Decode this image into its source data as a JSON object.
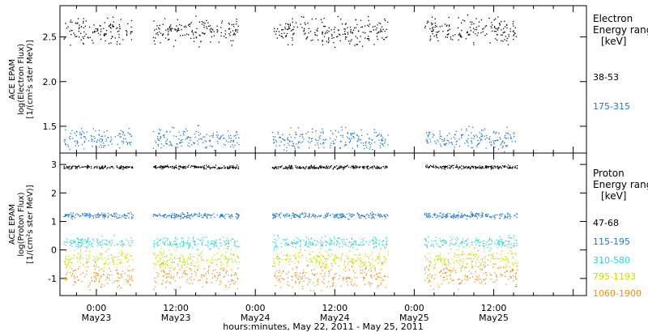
{
  "chart_data": {
    "type": "scatter",
    "xlabel": "hours:minutes, May 22, 2011 - May 25, 2011",
    "x_ticks": [
      {
        "time": "0:00",
        "day": "May23"
      },
      {
        "time": "12:00",
        "day": "May23"
      },
      {
        "time": "0:00",
        "day": "May24"
      },
      {
        "time": "12:00",
        "day": "May24"
      },
      {
        "time": "0:00",
        "day": "May25"
      },
      {
        "time": "12:00",
        "day": "May25"
      }
    ],
    "x_tick_hours": [
      0,
      12,
      24,
      36,
      48,
      60
    ],
    "xlim_hours": [
      -5.5,
      74
    ],
    "data_segments_hours": [
      [
        -5.0,
        5.5
      ],
      [
        8.5,
        21.5
      ],
      [
        26.5,
        44.0
      ],
      [
        49.5,
        63.5
      ]
    ],
    "panels": [
      {
        "id": "electron",
        "ylabel": [
          "ACE EPAM",
          "log(Electron Flux)",
          "[1/(cm²s ster MeV)]"
        ],
        "ylim": [
          1.2,
          2.85
        ],
        "y_ticks": [
          "1.5",
          "2.0",
          "2.5"
        ],
        "y_tick_values": [
          1.5,
          2.0,
          2.5
        ],
        "legend_title": [
          "Electron",
          "Energy range",
          "[keV]"
        ],
        "series": [
          {
            "name": "38-53",
            "color": "#000000",
            "mean": 2.57,
            "spread": 0.07
          },
          {
            "name": "175-315",
            "color": "#1e78d2",
            "mean": 1.36,
            "spread": 0.06
          }
        ]
      },
      {
        "id": "proton",
        "ylabel": [
          "ACE EPAM",
          "log(Proton Flux)",
          "[1/(cm²s ster MeV)]"
        ],
        "ylim": [
          -1.6,
          3.4
        ],
        "y_ticks": [
          "-1",
          "0",
          "1",
          "2",
          "3"
        ],
        "y_tick_values": [
          -1,
          0,
          1,
          2,
          3
        ],
        "legend_title": [
          "Proton",
          "Energy range",
          "[keV]"
        ],
        "series": [
          {
            "name": "47-68",
            "color": "#000000",
            "mean": 2.92,
            "spread": 0.03
          },
          {
            "name": "115-195",
            "color": "#1e78d2",
            "mean": 1.22,
            "spread": 0.05
          },
          {
            "name": "310-580",
            "color": "#29d6d0",
            "mean": 0.27,
            "spread": 0.1
          },
          {
            "name": "795-1193",
            "color": "#c4e000",
            "mean": -0.3,
            "spread": 0.15
          },
          {
            "name": "1060-1900",
            "color": "#e8900f",
            "mean": -0.88,
            "spread": 0.22
          }
        ]
      }
    ]
  }
}
